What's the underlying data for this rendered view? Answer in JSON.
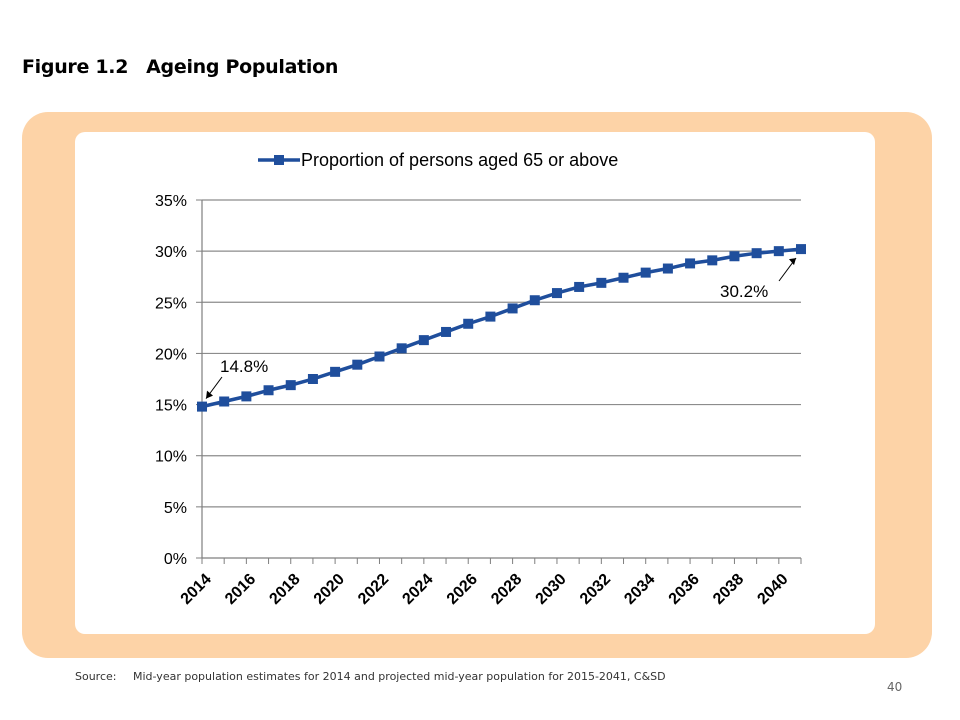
{
  "figure": {
    "number": "Figure 1.2",
    "title": "Ageing Population"
  },
  "source": {
    "label": "Source:",
    "text": "Mid-year population estimates for 2014 and projected mid-year population for 2015-2041, C&SD"
  },
  "page_number": "40",
  "chart_data": {
    "type": "line",
    "title": "",
    "xlabel": "",
    "ylabel": "",
    "x": [
      2014,
      2015,
      2016,
      2017,
      2018,
      2019,
      2020,
      2021,
      2022,
      2023,
      2024,
      2025,
      2026,
      2027,
      2028,
      2029,
      2030,
      2031,
      2032,
      2033,
      2034,
      2035,
      2036,
      2037,
      2038,
      2039,
      2040,
      2041
    ],
    "x_tick_labels": [
      "2014",
      "2016",
      "2018",
      "2020",
      "2022",
      "2024",
      "2026",
      "2028",
      "2030",
      "2032",
      "2034",
      "2036",
      "2038",
      "2040"
    ],
    "y_tick_labels": [
      "0%",
      "5%",
      "10%",
      "15%",
      "20%",
      "25%",
      "30%",
      "35%"
    ],
    "ylim": [
      0,
      35
    ],
    "series": [
      {
        "name": "Proportion of persons aged 65 or above",
        "color": "#1f4e9c",
        "marker": "square",
        "values": [
          14.8,
          15.3,
          15.8,
          16.4,
          16.9,
          17.5,
          18.2,
          18.9,
          19.7,
          20.5,
          21.3,
          22.1,
          22.9,
          23.6,
          24.4,
          25.2,
          25.9,
          26.5,
          26.9,
          27.4,
          27.9,
          28.3,
          28.8,
          29.1,
          29.5,
          29.8,
          30.0,
          30.2
        ]
      }
    ],
    "annotations": [
      {
        "text": "14.8%",
        "x": 2014,
        "y": 14.8
      },
      {
        "text": "30.2%",
        "x": 2041,
        "y": 30.2
      }
    ],
    "grid": "horizontal",
    "legend_position": "top"
  }
}
